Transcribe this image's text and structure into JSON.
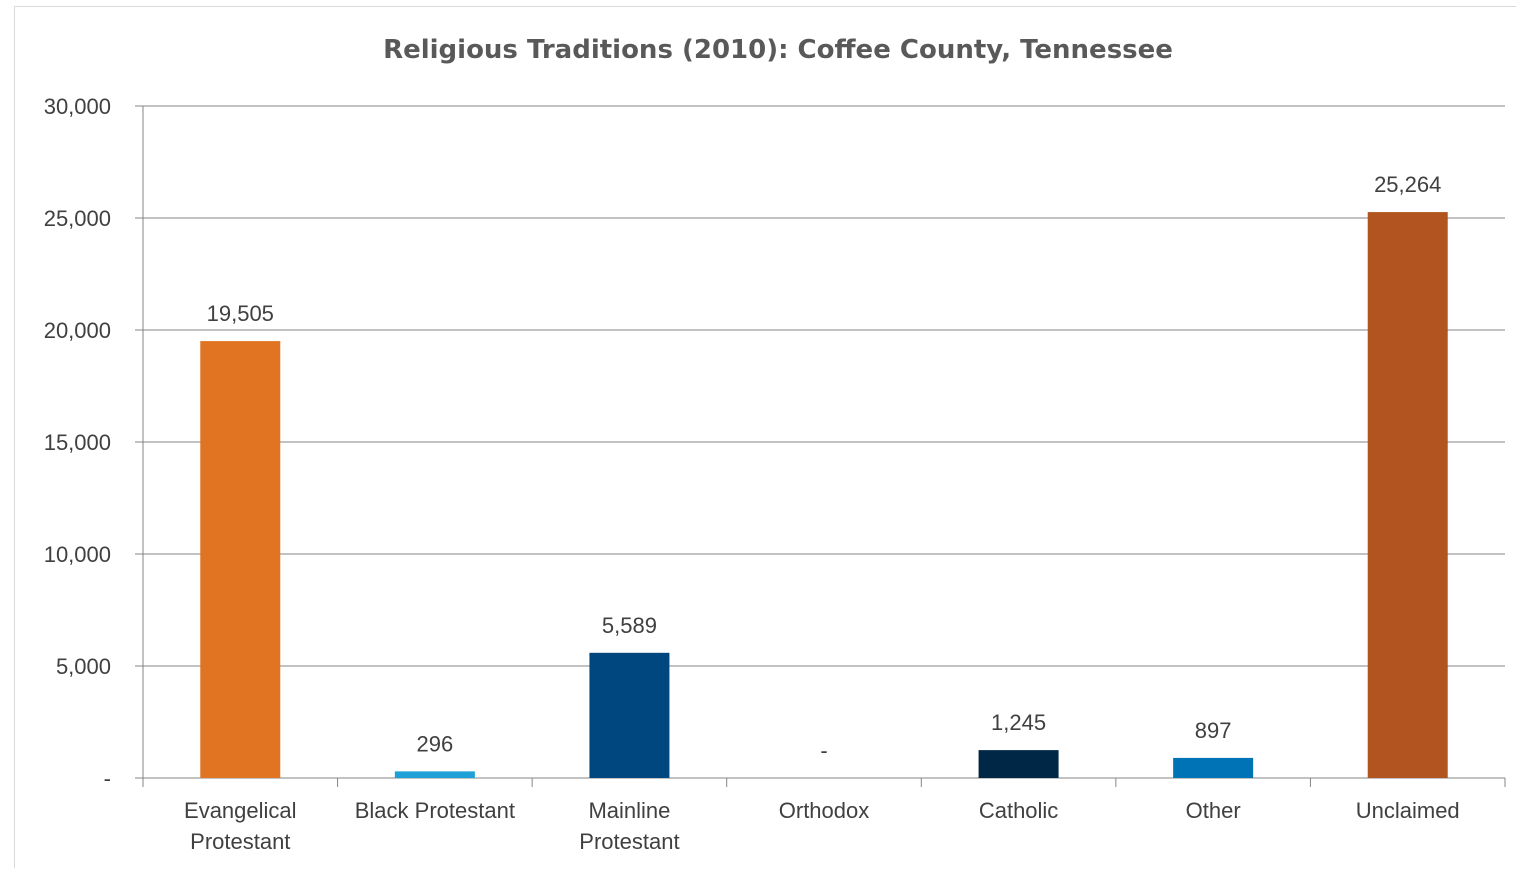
{
  "chart_data": {
    "type": "bar",
    "title": "Religious Traditions (2010): Coffee County, Tennessee",
    "categories": [
      [
        "Evangelical",
        "Protestant"
      ],
      [
        "Black Protestant"
      ],
      [
        "Mainline",
        "Protestant"
      ],
      [
        "Orthodox"
      ],
      [
        "Catholic"
      ],
      [
        "Other"
      ],
      [
        "Unclaimed"
      ]
    ],
    "values": [
      19505,
      296,
      5589,
      0,
      1245,
      897,
      25264
    ],
    "value_labels": [
      "19,505",
      "296",
      "5,589",
      "-",
      "1,245",
      "897",
      "25,264"
    ],
    "colors": [
      "#e07423",
      "#1ea1d9",
      "#00467f",
      "#4f81bd",
      "#002745",
      "#0073b6",
      "#b1541f"
    ],
    "ylim": [
      0,
      30000
    ],
    "yticks": [
      0,
      5000,
      10000,
      15000,
      20000,
      25000,
      30000
    ],
    "ytick_labels": [
      "-",
      "5,000",
      "10,000",
      "15,000",
      "20,000",
      "25,000",
      "30,000"
    ],
    "grid": true,
    "legend": "none",
    "xlabel": "",
    "ylabel": ""
  }
}
